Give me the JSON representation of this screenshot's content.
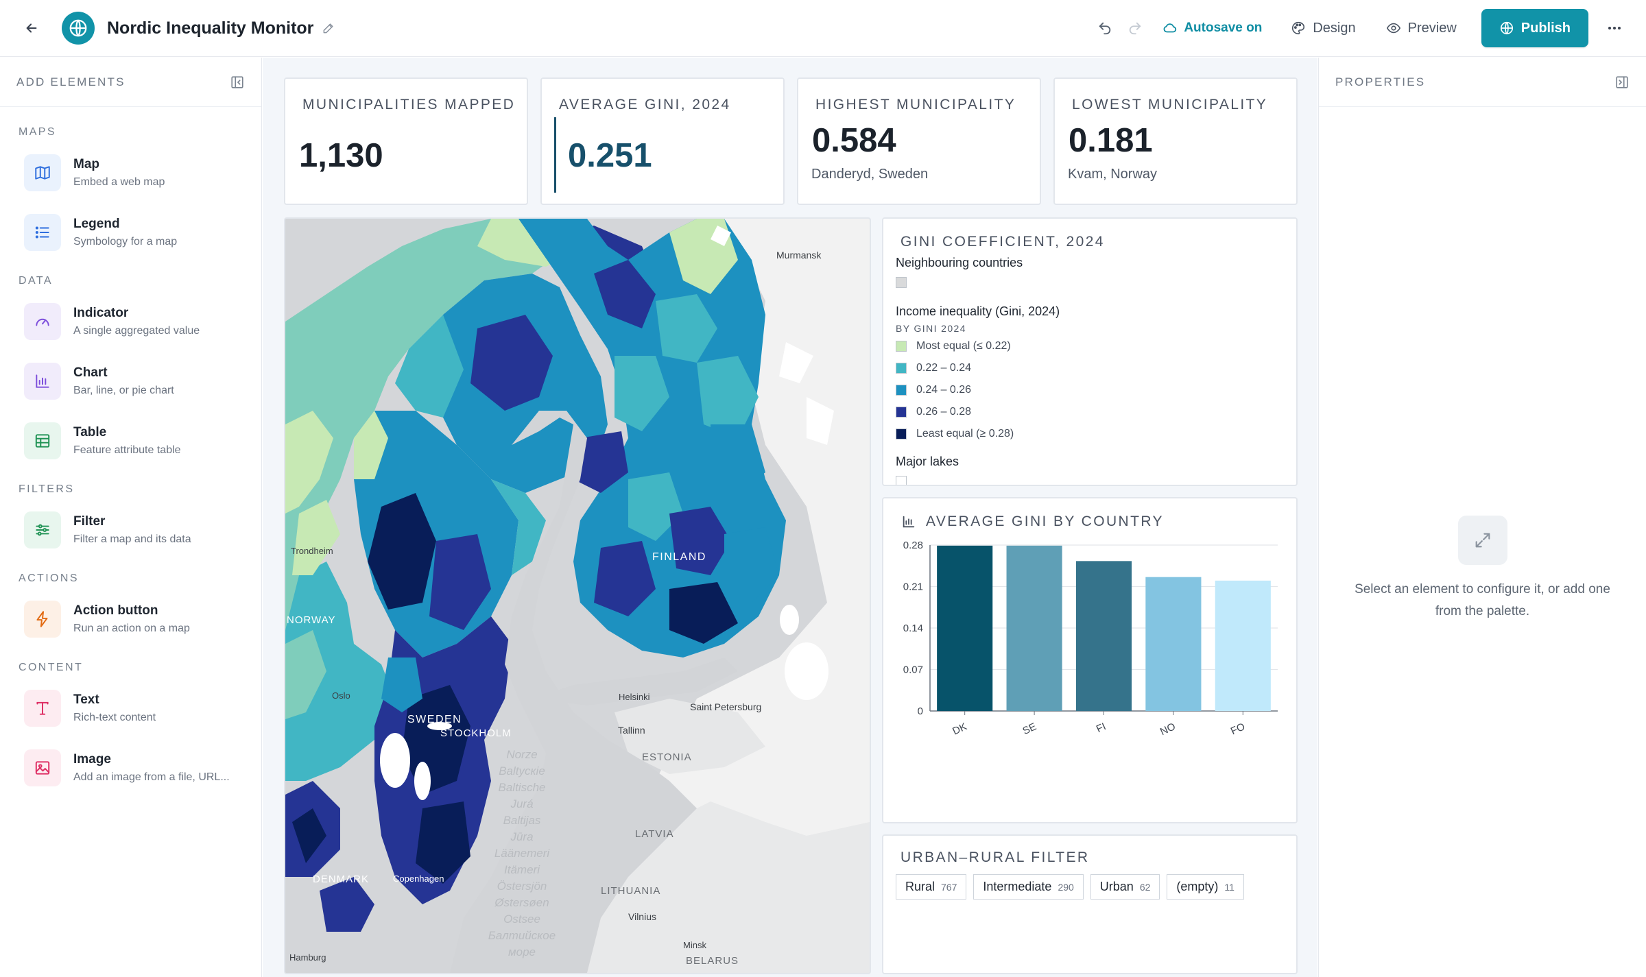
{
  "app": {
    "title": "Nordic Inequality Monitor",
    "autosave_label": "Autosave on",
    "design_label": "Design",
    "preview_label": "Preview",
    "publish_label": "Publish",
    "accent_color": "#1193a8"
  },
  "left_panel": {
    "title": "ADD ELEMENTS",
    "sections": [
      {
        "label": "MAPS",
        "items": [
          {
            "name": "Map",
            "desc": "Embed a web map",
            "icon": "map-icon"
          },
          {
            "name": "Legend",
            "desc": "Symbology for a map",
            "icon": "list-icon"
          }
        ]
      },
      {
        "label": "DATA",
        "items": [
          {
            "name": "Indicator",
            "desc": "A single aggregated value",
            "icon": "gauge-icon"
          },
          {
            "name": "Chart",
            "desc": "Bar, line, or pie chart",
            "icon": "bar-chart-icon"
          },
          {
            "name": "Table",
            "desc": "Feature attribute table",
            "icon": "table-icon"
          }
        ]
      },
      {
        "label": "FILTERS",
        "items": [
          {
            "name": "Filter",
            "desc": "Filter a map and its data",
            "icon": "sliders-icon"
          }
        ]
      },
      {
        "label": "ACTIONS",
        "items": [
          {
            "name": "Action button",
            "desc": "Run an action on a map",
            "icon": "lightning-icon"
          }
        ]
      },
      {
        "label": "CONTENT",
        "items": [
          {
            "name": "Text",
            "desc": "Rich-text content",
            "icon": "text-icon"
          },
          {
            "name": "Image",
            "desc": "Add an image from a file, URL...",
            "icon": "image-icon"
          }
        ]
      }
    ]
  },
  "kpis": [
    {
      "title": "MUNICIPALITIES MAPPED",
      "value": "1,130",
      "sub": ""
    },
    {
      "title": "AVERAGE GINI, 2024",
      "value": "0.251",
      "sub": ""
    },
    {
      "title": "HIGHEST MUNICIPALITY",
      "value": "0.584",
      "sub": "Danderyd, Sweden"
    },
    {
      "title": "LOWEST MUNICIPALITY",
      "value": "0.181",
      "sub": "Kvam, Norway"
    }
  ],
  "map": {
    "labels": {
      "murmansk": "Murmansk",
      "trondheim": "Trondheim",
      "norway": "NORWAY",
      "finland": "FINLAND",
      "oslo": "Oslo",
      "sweden": "SWEDEN",
      "stockholm": "STOCKHOLM",
      "helsinki": "Helsinki",
      "stpetersburg": "Saint Petersburg",
      "tallinn": "Tallinn",
      "estonia": "ESTONIA",
      "latvia": "LATVIA",
      "lithuania": "LITHUANIA",
      "vilnius": "Vilnius",
      "denmark": "DENMARK",
      "copenhagen": "Copenhagen",
      "minsk": "Minsk",
      "belarus": "BELARUS",
      "hamburg": "Hamburg",
      "sea": [
        "Norze",
        "Baltycкie",
        "Baltische",
        "Jurá",
        "Baltijas",
        "Jūra",
        "Läänemeri",
        "Itämeri",
        "Östersjön",
        "Østersøen",
        "Ostsee",
        "Балтийское",
        "море"
      ]
    }
  },
  "legend": {
    "title": "GINI COEFFICIENT, 2024",
    "neighbouring": "Neighbouring countries",
    "income_group": "Income inequality (Gini, 2024)",
    "by_label": "BY GINI 2024",
    "classes": [
      {
        "label": "Most equal (≤ 0.22)",
        "color": "#c7e9b4"
      },
      {
        "label": "0.22 – 0.24",
        "color": "#41b6c4"
      },
      {
        "label": "0.24 – 0.26",
        "color": "#1d91c0"
      },
      {
        "label": "0.26 – 0.28",
        "color": "#253494"
      },
      {
        "label": "Least equal (≥ 0.28)",
        "color": "#081d58"
      }
    ],
    "lakes": "Major lakes"
  },
  "chart_data": {
    "type": "bar",
    "title": "AVERAGE GINI BY COUNTRY",
    "categories": [
      "DK",
      "SE",
      "FI",
      "NO",
      "FO"
    ],
    "values": [
      0.279,
      0.279,
      0.253,
      0.226,
      0.22
    ],
    "colors": [
      "#07536a",
      "#5f9fb6",
      "#35738b",
      "#83c4e1",
      "#c0e9fb"
    ],
    "yticks": [
      0,
      0.07,
      0.14,
      0.21,
      0.28
    ],
    "ylim": [
      0,
      0.28
    ],
    "grid": true
  },
  "filter": {
    "title": "URBAN–RURAL FILTER",
    "chips": [
      {
        "label": "Rural",
        "count": "767"
      },
      {
        "label": "Intermediate",
        "count": "290"
      },
      {
        "label": "Urban",
        "count": "62"
      },
      {
        "label": "(empty)",
        "count": "11"
      }
    ]
  },
  "right_panel": {
    "title": "PROPERTIES",
    "empty_text": "Select an element to configure it, or add one from the palette."
  }
}
